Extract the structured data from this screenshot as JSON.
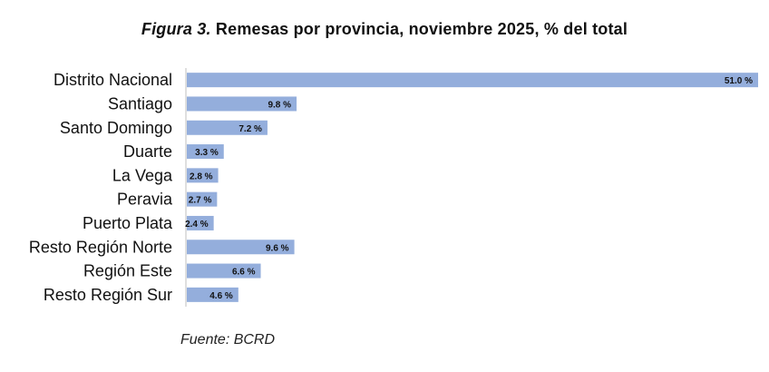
{
  "chart_data": {
    "type": "bar",
    "orientation": "horizontal",
    "title_prefix": "Figura 3.",
    "title_text": "Remesas por provincia, noviembre 2025, % del total",
    "categories": [
      "Distrito Nacional",
      "Santiago",
      "Santo Domingo",
      "Duarte",
      "La Vega",
      "Peravia",
      "Puerto Plata",
      "Resto Región Norte",
      "Región Este",
      "Resto Región Sur"
    ],
    "values": [
      51.0,
      9.8,
      7.2,
      3.3,
      2.8,
      2.7,
      2.4,
      9.6,
      6.6,
      4.6
    ],
    "value_labels": [
      "51.0 %",
      "9.8 %",
      "7.2 %",
      "3.3 %",
      "2.8 %",
      "2.7 %",
      "2.4 %",
      "9.6 %",
      "6.6 %",
      "4.6 %"
    ],
    "xlim": [
      0,
      51.0
    ],
    "grid": false,
    "legend": "none",
    "bar_color": "#94aedc",
    "axis_color": "#bfbfbf"
  },
  "source_note": "Fuente: BCRD"
}
